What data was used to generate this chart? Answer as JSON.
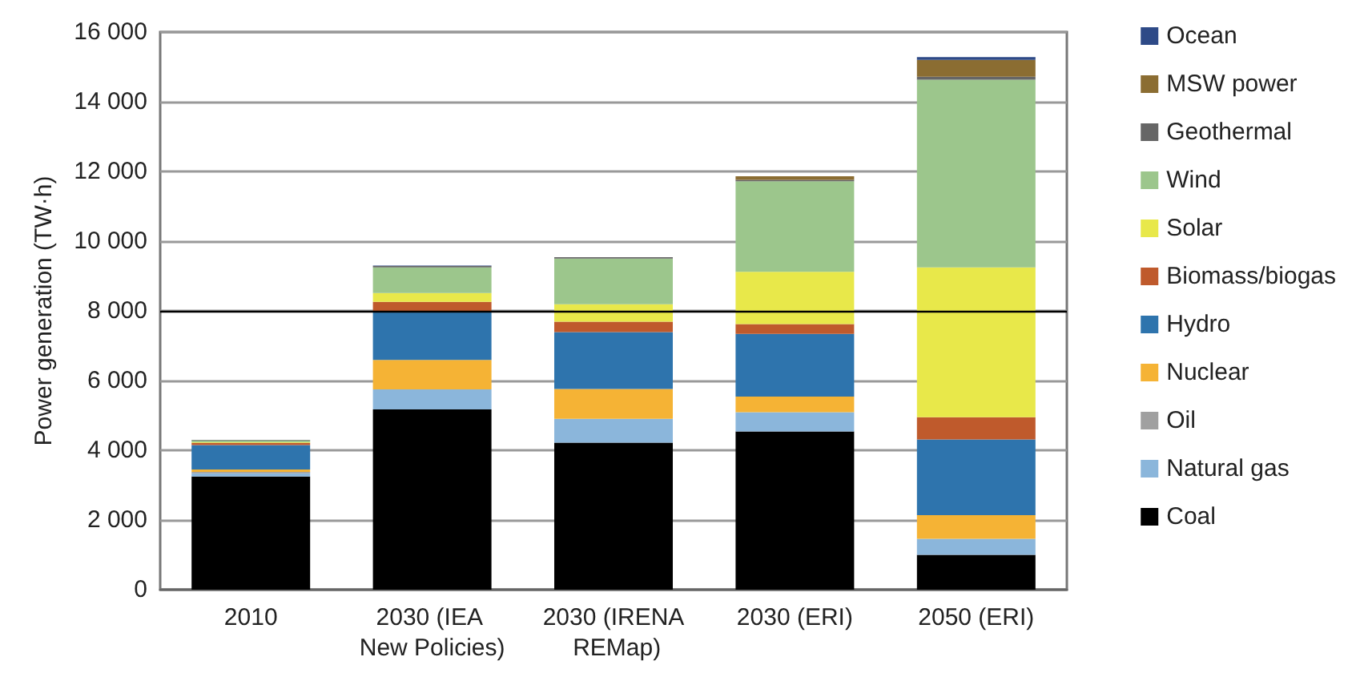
{
  "chart_data": {
    "type": "bar",
    "stacked": true,
    "ylabel": "Power generation (TW·h)",
    "categories": [
      "2010",
      "2030 (IEA New Policies)",
      "2030 (IRENA REMap)",
      "2030 (ERI)",
      "2050 (ERI)"
    ],
    "series": [
      {
        "name": "Coal",
        "color": "#000000",
        "values": [
          3250,
          5170,
          4220,
          4540,
          1000
        ]
      },
      {
        "name": "Natural gas",
        "color": "#8bb6db",
        "values": [
          90,
          580,
          680,
          550,
          460
        ]
      },
      {
        "name": "Oil",
        "color": "#a0a0a0",
        "values": [
          40,
          0,
          0,
          0,
          0
        ]
      },
      {
        "name": "Nuclear",
        "color": "#f5b335",
        "values": [
          70,
          840,
          860,
          450,
          680
        ]
      },
      {
        "name": "Hydro",
        "color": "#2e74ad",
        "values": [
          700,
          1380,
          1630,
          1800,
          2170
        ]
      },
      {
        "name": "Biomass/biogas",
        "color": "#bf5a2c",
        "values": [
          60,
          290,
          300,
          280,
          640
        ]
      },
      {
        "name": "Solar",
        "color": "#e8e84a",
        "values": [
          20,
          250,
          500,
          1500,
          4300
        ]
      },
      {
        "name": "Wind",
        "color": "#9cc68c",
        "values": [
          50,
          740,
          1310,
          2600,
          5380
        ]
      },
      {
        "name": "Geothermal",
        "color": "#666666",
        "values": [
          20,
          40,
          40,
          40,
          90
        ]
      },
      {
        "name": "MSW power",
        "color": "#8b6d32",
        "values": [
          0,
          0,
          0,
          100,
          480
        ]
      },
      {
        "name": "Ocean",
        "color": "#2e4a87",
        "values": [
          0,
          10,
          0,
          0,
          80
        ]
      }
    ],
    "ylim": [
      0,
      16000
    ],
    "yticks": [
      0,
      {
        "value": 2000,
        "label": "2 000"
      },
      {
        "value": 4000,
        "label": "4 000"
      },
      {
        "value": 6000,
        "label": "6 000"
      },
      {
        "value": 8000,
        "label": "8 000"
      },
      {
        "value": 10000,
        "label": "10 000"
      },
      {
        "value": 12000,
        "label": "12 000"
      },
      {
        "value": 14000,
        "label": "14 000"
      },
      {
        "value": 16000,
        "label": "16 000"
      }
    ],
    "grid": "y",
    "legend": "right",
    "ref_lines": [
      {
        "axis": "y",
        "value": 8000,
        "label": null,
        "color": "#000000"
      }
    ]
  }
}
